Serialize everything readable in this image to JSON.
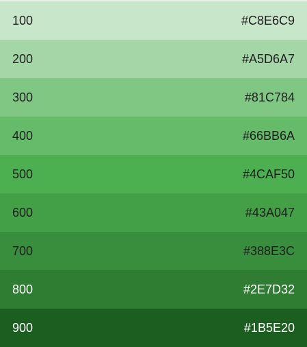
{
  "swatches": [
    {
      "shade": "100",
      "hex": "#C8E6C9",
      "color": "#C8E6C9",
      "text": "dark"
    },
    {
      "shade": "200",
      "hex": "#A5D6A7",
      "color": "#A5D6A7",
      "text": "dark"
    },
    {
      "shade": "300",
      "hex": "#81C784",
      "color": "#81C784",
      "text": "dark"
    },
    {
      "shade": "400",
      "hex": "#66BB6A",
      "color": "#66BB6A",
      "text": "dark"
    },
    {
      "shade": "500",
      "hex": "#4CAF50",
      "color": "#4CAF50",
      "text": "dark"
    },
    {
      "shade": "600",
      "hex": "#43A047",
      "color": "#43A047",
      "text": "dark"
    },
    {
      "shade": "700",
      "hex": "#388E3C",
      "color": "#388E3C",
      "text": "dark"
    },
    {
      "shade": "800",
      "hex": "#2E7D32",
      "color": "#2E7D32",
      "text": "light"
    },
    {
      "shade": "900",
      "hex": "#1B5E20",
      "color": "#1B5E20",
      "text": "light"
    }
  ]
}
